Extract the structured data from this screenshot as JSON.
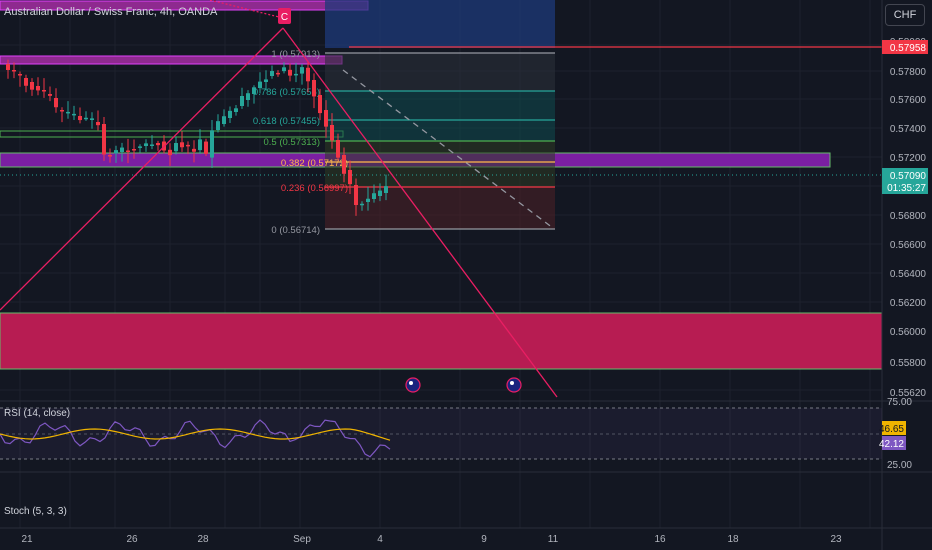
{
  "header": {
    "title": "Australian Dollar / Swiss Franc, 4h, OANDA"
  },
  "currency_button": "CHF",
  "alert_marker": "C",
  "price_axis": {
    "ticks": [
      "0.57800",
      "0.57600",
      "0.57400",
      "0.57200",
      "0.56800",
      "0.56600",
      "0.56400",
      "0.56200",
      "0.56000",
      "0.55800",
      "0.55620"
    ],
    "top_tick": "0.58000",
    "alert_price": "0.57958",
    "current_price": "0.57090",
    "countdown": "01:35:27"
  },
  "time_axis": {
    "ticks": [
      "21",
      "26",
      "28",
      "Sep",
      "4",
      "9",
      "11",
      "16",
      "18",
      "23"
    ]
  },
  "fib_levels": [
    {
      "label": "1 (0.57913)",
      "ratio": 1
    },
    {
      "label": "0.786 (0.57656)",
      "ratio": 0.786
    },
    {
      "label": "0.618 (0.57455)",
      "ratio": 0.618
    },
    {
      "label": "0.5 (0.57313)",
      "ratio": 0.5
    },
    {
      "label": "0.382 (0.57172)",
      "ratio": 0.382
    },
    {
      "label": "0.236 (0.56997)",
      "ratio": 0.236
    },
    {
      "label": "0 (0.56714)",
      "ratio": 0
    }
  ],
  "rsi": {
    "label": "RSI (14, close)",
    "upper": "75.00",
    "lower": "25.00",
    "value_ma": "46.65",
    "value_rsi": "42.12"
  },
  "stoch": {
    "label": "Stoch (5, 3, 3)"
  },
  "colors": {
    "background": "#131722",
    "bull": "#26a69a",
    "bear": "#f23645",
    "purple": "#9c27b0",
    "pink": "#c2185b",
    "rsi_line": "#7e57c2",
    "rsi_ma": "#f0b400"
  },
  "event_icons": [
    "flag-au-icon",
    "flag-au-icon"
  ]
}
